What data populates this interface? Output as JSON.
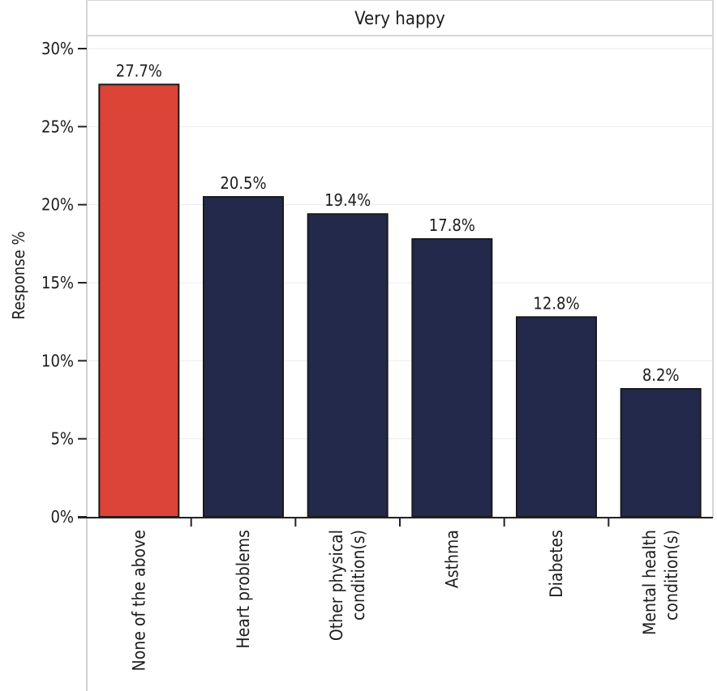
{
  "chart_data": {
    "type": "bar",
    "panel_title": "Very happy",
    "ylabel": "Response %",
    "xlabel": "",
    "ylim": [
      0,
      30
    ],
    "y_ticks": [
      0,
      5,
      10,
      15,
      20,
      25,
      30
    ],
    "y_tick_labels": [
      "0%",
      "5%",
      "10%",
      "15%",
      "20%",
      "25%",
      "30%"
    ],
    "categories": [
      [
        "None of the above"
      ],
      [
        "Heart problems"
      ],
      [
        "Other physical",
        "condition(s)"
      ],
      [
        "Asthma"
      ],
      [
        "Diabetes"
      ],
      [
        "Mental health",
        "condition(s)"
      ]
    ],
    "values": [
      27.7,
      20.5,
      19.4,
      17.8,
      12.8,
      8.2
    ],
    "value_labels": [
      "27.7%",
      "20.5%",
      "19.4%",
      "17.8%",
      "12.8%",
      "8.2%"
    ],
    "colors": [
      "#dc4437",
      "#23294a",
      "#23294a",
      "#23294a",
      "#23294a",
      "#23294a"
    ],
    "gridlines": true
  }
}
